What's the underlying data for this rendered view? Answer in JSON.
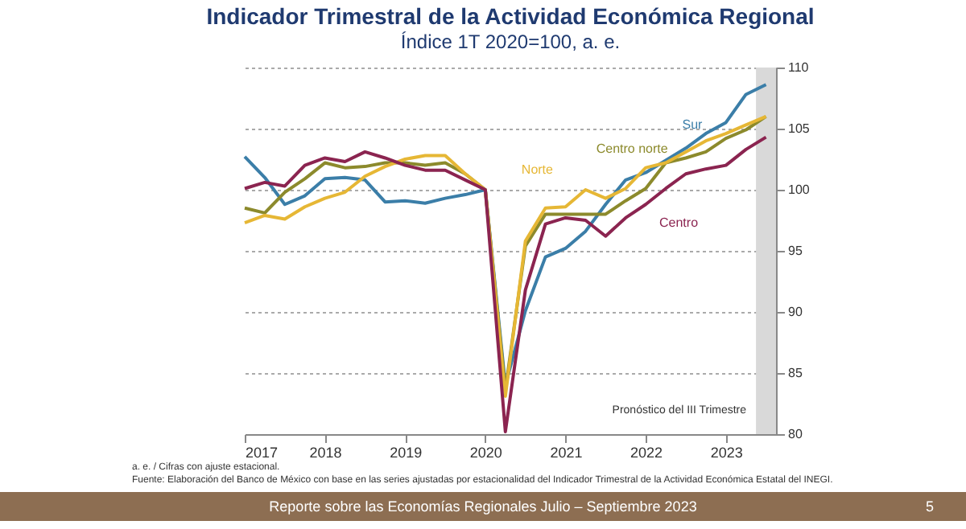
{
  "chart_data": {
    "type": "line",
    "title": "Indicador Trimestral de la Actividad Económica Regional",
    "subtitle": "Índice 1T 2020=100, a. e.",
    "x": [
      2017,
      2017.25,
      2017.5,
      2017.75,
      2018,
      2018.25,
      2018.5,
      2018.75,
      2019,
      2019.25,
      2019.5,
      2019.75,
      2020,
      2020.25,
      2020.5,
      2020.75,
      2021,
      2021.25,
      2021.5,
      2021.75,
      2022,
      2022.25,
      2022.5,
      2022.75,
      2023,
      2023.25,
      2023.5
    ],
    "series": [
      {
        "name": "Sur",
        "color": "#3b7ea8",
        "values": [
          102.7,
          101.0,
          98.8,
          99.5,
          100.9,
          101.0,
          100.8,
          99.0,
          99.1,
          98.9,
          99.3,
          99.6,
          100,
          84.0,
          90.1,
          94.5,
          95.2,
          96.6,
          98.8,
          100.8,
          101.4,
          102.4,
          103.4,
          104.6,
          105.5,
          107.8,
          108.6
        ]
      },
      {
        "name": "Centro norte",
        "color": "#8c8a2c",
        "values": [
          98.5,
          98.1,
          99.8,
          100.9,
          102.2,
          101.8,
          101.9,
          102.2,
          102.2,
          102.0,
          102.2,
          101.3,
          100,
          83.6,
          95.4,
          98.0,
          98.0,
          98.0,
          98.0,
          99.1,
          100.1,
          102.2,
          102.6,
          103.1,
          104.2,
          104.9,
          106.0
        ]
      },
      {
        "name": "Norte",
        "color": "#e6b735",
        "values": [
          97.3,
          97.9,
          97.6,
          98.6,
          99.3,
          99.8,
          101.1,
          101.9,
          102.5,
          102.8,
          102.8,
          101.3,
          100,
          83.1,
          95.8,
          98.5,
          98.6,
          100.0,
          99.3,
          100.1,
          101.8,
          102.2,
          103.1,
          104.0,
          104.6,
          105.3,
          106.0
        ]
      },
      {
        "name": "Centro",
        "color": "#8b2450",
        "values": [
          100.1,
          100.6,
          100.3,
          102.0,
          102.6,
          102.3,
          103.1,
          102.6,
          102.0,
          101.6,
          101.6,
          100.8,
          100,
          80.2,
          91.8,
          97.2,
          97.7,
          97.5,
          96.2,
          97.7,
          98.8,
          100.1,
          101.3,
          101.7,
          102.0,
          103.3,
          104.3
        ]
      }
    ],
    "xlim": [
      2017,
      2023.625
    ],
    "xticks": [
      2017,
      2018,
      2019,
      2020,
      2021,
      2022,
      2023
    ],
    "ylim": [
      80,
      110
    ],
    "yticks": [
      80,
      85,
      90,
      95,
      100,
      105,
      110
    ],
    "grid": "y",
    "legend": false,
    "bands": [
      {
        "axis": "x",
        "from": 2023.375,
        "to": 2023.625,
        "label": "Pronóstico del III Trimestre",
        "color": "#d9d9d9"
      }
    ],
    "annotations": [
      "a. e. / Cifras con ajuste estacional.",
      "Fuente: Elaboración del Banco de México con base en las series ajustadas por estacionalidad del Indicador Trimestral de la Actividad Económica Estatal del INEGI.",
      "Reporte sobre las Economías Regionales Julio – Septiembre 2023",
      "5"
    ]
  }
}
